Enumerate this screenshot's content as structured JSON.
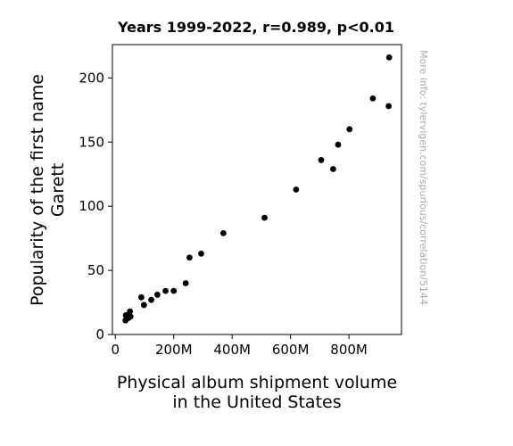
{
  "chart_data": {
    "type": "scatter",
    "title": "Years 1999-2022, r=0.989, p<0.01",
    "xlabel": [
      "Physical album shipment volume",
      "in the United States"
    ],
    "ylabel": [
      "Popularity of the first name",
      "Garett"
    ],
    "xlim": [
      -10,
      980
    ],
    "ylim": [
      0,
      226
    ],
    "x_ticks": [
      {
        "value": 0,
        "label": "0"
      },
      {
        "value": 200,
        "label": "200M"
      },
      {
        "value": 400,
        "label": "400M"
      },
      {
        "value": 600,
        "label": "600M"
      },
      {
        "value": 800,
        "label": "800M"
      }
    ],
    "y_ticks": [
      {
        "value": 0,
        "label": "0"
      },
      {
        "value": 50,
        "label": "50"
      },
      {
        "value": 100,
        "label": "100"
      },
      {
        "value": 150,
        "label": "150"
      },
      {
        "value": 200,
        "label": "200"
      }
    ],
    "grid": false,
    "point_color": "#000000",
    "points": [
      {
        "x": 938,
        "y": 216
      },
      {
        "x": 936,
        "y": 178
      },
      {
        "x": 882,
        "y": 184
      },
      {
        "x": 802,
        "y": 160
      },
      {
        "x": 763,
        "y": 148
      },
      {
        "x": 705,
        "y": 136
      },
      {
        "x": 746,
        "y": 129
      },
      {
        "x": 619,
        "y": 113
      },
      {
        "x": 511,
        "y": 91
      },
      {
        "x": 370,
        "y": 79
      },
      {
        "x": 294,
        "y": 63
      },
      {
        "x": 254,
        "y": 60
      },
      {
        "x": 241,
        "y": 40
      },
      {
        "x": 200,
        "y": 34
      },
      {
        "x": 172,
        "y": 34
      },
      {
        "x": 144,
        "y": 31
      },
      {
        "x": 123,
        "y": 27
      },
      {
        "x": 89,
        "y": 29
      },
      {
        "x": 98,
        "y": 23
      },
      {
        "x": 50,
        "y": 18
      },
      {
        "x": 52,
        "y": 14
      },
      {
        "x": 46,
        "y": 13
      },
      {
        "x": 36,
        "y": 15
      },
      {
        "x": 35,
        "y": 11
      }
    ]
  },
  "side_note": "More info: tylervigen.com/spurious/correlation/5144"
}
